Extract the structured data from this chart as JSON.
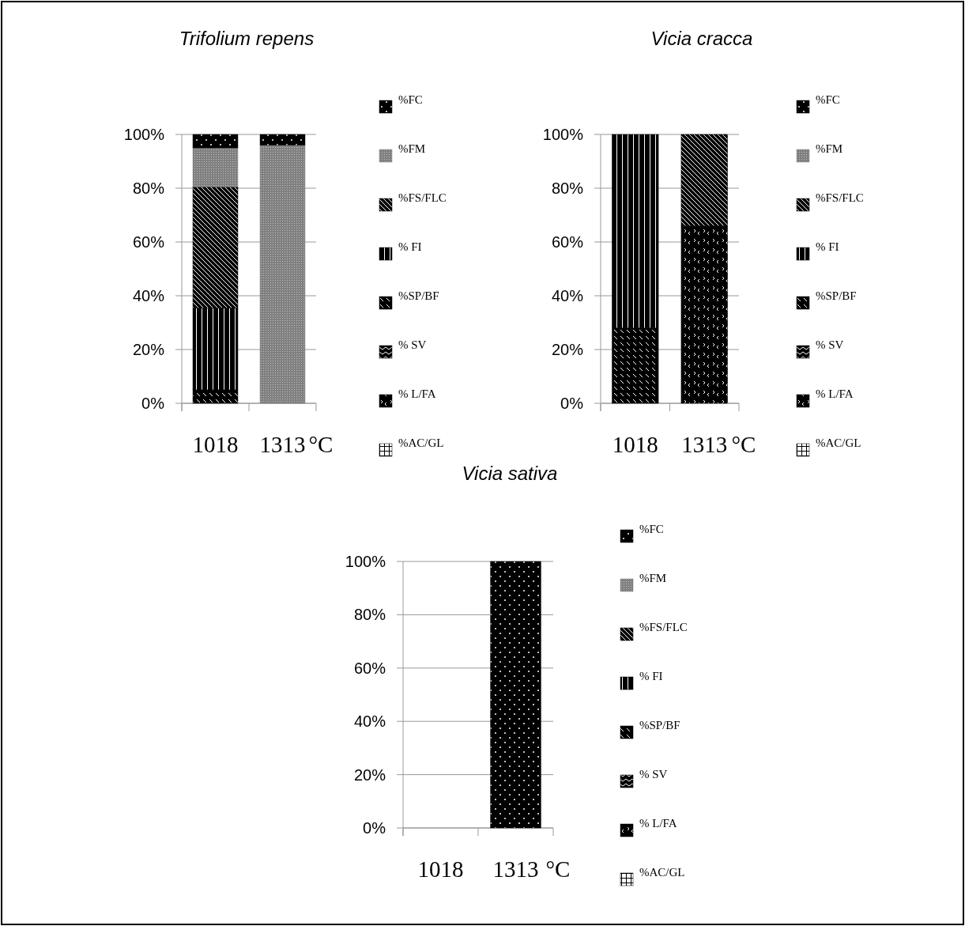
{
  "chart_data": [
    {
      "type": "bar",
      "title": "Trifolium repens",
      "xlabel": "°C",
      "categories": [
        "1018",
        "1313"
      ],
      "stacked": true,
      "ylim": [
        0,
        100
      ],
      "yticks": [
        {
          "value": 0,
          "label": "0%"
        },
        {
          "value": 20,
          "label": "20%"
        },
        {
          "value": 40,
          "label": "40%"
        },
        {
          "value": 60,
          "label": "60%"
        },
        {
          "value": 80,
          "label": "80%"
        },
        {
          "value": 100,
          "label": "100%"
        }
      ],
      "grid": "y",
      "legend": "right",
      "series": [
        {
          "name": "%AC/GL",
          "color": "#000000",
          "values": [
            0,
            0
          ]
        },
        {
          "name": "% L/FA",
          "color": "#000000",
          "values": [
            0,
            0
          ]
        },
        {
          "name": "% SV",
          "color": "#000000",
          "values": [
            0,
            0
          ]
        },
        {
          "name": "%SP/BF",
          "color": "#000000",
          "values": [
            5,
            0
          ]
        },
        {
          "name": "% FI",
          "color": "#000000",
          "values": [
            30.5,
            0
          ]
        },
        {
          "name": "%FS/FLC",
          "color": "#000000",
          "values": [
            45,
            0
          ]
        },
        {
          "name": "%FM",
          "color": "#808080",
          "values": [
            14.5,
            96
          ]
        },
        {
          "name": "%FC",
          "color": "#000000",
          "values": [
            5,
            4
          ]
        }
      ]
    },
    {
      "type": "bar",
      "title": "Vicia cracca",
      "xlabel": "°C",
      "categories": [
        "1018",
        "1313"
      ],
      "stacked": true,
      "ylim": [
        0,
        100
      ],
      "yticks": [
        {
          "value": 0,
          "label": "0%"
        },
        {
          "value": 20,
          "label": "20%"
        },
        {
          "value": 40,
          "label": "40%"
        },
        {
          "value": 60,
          "label": "60%"
        },
        {
          "value": 80,
          "label": "80%"
        },
        {
          "value": 100,
          "label": "100%"
        }
      ],
      "grid": "y",
      "legend": "right",
      "series": [
        {
          "name": "%AC/GL",
          "color": "#000000",
          "values": [
            0,
            0
          ]
        },
        {
          "name": "% L/FA",
          "color": "#000000",
          "values": [
            0,
            66
          ]
        },
        {
          "name": "% SV",
          "color": "#000000",
          "values": [
            0,
            0
          ]
        },
        {
          "name": "%SP/BF",
          "color": "#000000",
          "values": [
            28,
            0
          ]
        },
        {
          "name": "% FI",
          "color": "#000000",
          "values": [
            72,
            0
          ]
        },
        {
          "name": "%FS/FLC",
          "color": "#000000",
          "values": [
            0,
            34
          ]
        },
        {
          "name": "%FM",
          "color": "#808080",
          "values": [
            0,
            0
          ]
        },
        {
          "name": "%FC",
          "color": "#000000",
          "values": [
            0,
            0
          ]
        }
      ]
    },
    {
      "type": "bar",
      "title": "Vicia sativa",
      "xlabel": "°C",
      "categories": [
        "1018",
        "1313"
      ],
      "stacked": true,
      "ylim": [
        0,
        100
      ],
      "yticks": [
        {
          "value": 0,
          "label": "0%"
        },
        {
          "value": 20,
          "label": "20%"
        },
        {
          "value": 40,
          "label": "40%"
        },
        {
          "value": 60,
          "label": "60%"
        },
        {
          "value": 80,
          "label": "80%"
        },
        {
          "value": 100,
          "label": "100%"
        }
      ],
      "grid": "y",
      "legend": "right",
      "series": [
        {
          "name": "%AC/GL",
          "color": "#000000",
          "values": [
            0,
            0
          ]
        },
        {
          "name": "% L/FA",
          "color": "#000000",
          "values": [
            0,
            0
          ]
        },
        {
          "name": "% SV",
          "color": "#000000",
          "values": [
            0,
            0
          ]
        },
        {
          "name": "%SP/BF",
          "color": "#000000",
          "values": [
            0,
            0
          ]
        },
        {
          "name": "% FI",
          "color": "#000000",
          "values": [
            0,
            0
          ]
        },
        {
          "name": "%FS/FLC",
          "color": "#000000",
          "values": [
            0,
            0
          ]
        },
        {
          "name": "%FM",
          "color": "#808080",
          "values": [
            0,
            0
          ]
        },
        {
          "name": "%FC",
          "color": "#000000",
          "values": [
            0,
            100
          ]
        }
      ]
    }
  ]
}
